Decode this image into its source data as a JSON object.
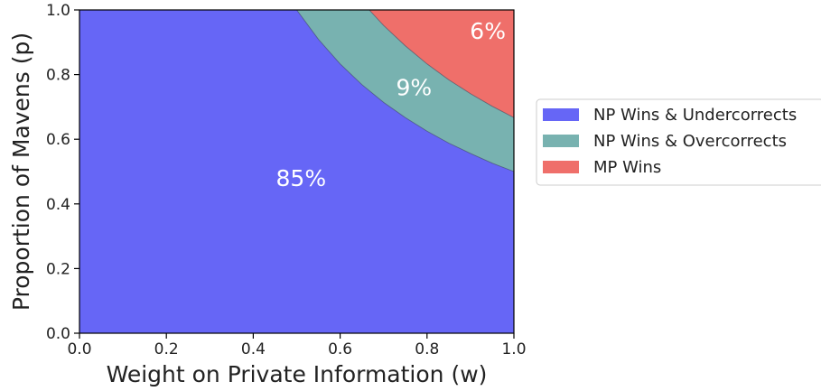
{
  "chart_data": {
    "type": "area",
    "title": "",
    "xlabel": "Weight on Private Information (w)",
    "ylabel": "Proportion of Mavens (p)",
    "xlim": [
      0.0,
      1.0
    ],
    "ylim": [
      0.0,
      1.0
    ],
    "xticks": [
      "0.0",
      "0.2",
      "0.4",
      "0.6",
      "0.8",
      "1.0"
    ],
    "yticks": [
      "0.0",
      "0.2",
      "0.4",
      "0.6",
      "0.8",
      "1.0"
    ],
    "grid": false,
    "legend_position": "right",
    "series": [
      {
        "name": "NP Wins & Undercorrects",
        "color": "#6666f6",
        "area_label": "85%",
        "boundary": {
          "x": [
            0.5,
            0.55,
            0.6,
            0.65,
            0.7,
            0.75,
            0.8,
            0.85,
            0.9,
            0.95,
            1.0
          ],
          "y": [
            1.0,
            0.909,
            0.833,
            0.769,
            0.714,
            0.667,
            0.625,
            0.588,
            0.556,
            0.526,
            0.5
          ]
        }
      },
      {
        "name": "NP Wins & Overcorrects",
        "color": "#78b2b0",
        "area_label": "9%",
        "boundary": {
          "x": [
            0.667,
            0.7,
            0.75,
            0.8,
            0.85,
            0.9,
            0.95,
            1.0
          ],
          "y": [
            1.0,
            0.952,
            0.889,
            0.833,
            0.784,
            0.741,
            0.702,
            0.667
          ]
        }
      },
      {
        "name": "MP Wins",
        "color": "#ef6f6a",
        "area_label": "6%"
      }
    ]
  }
}
